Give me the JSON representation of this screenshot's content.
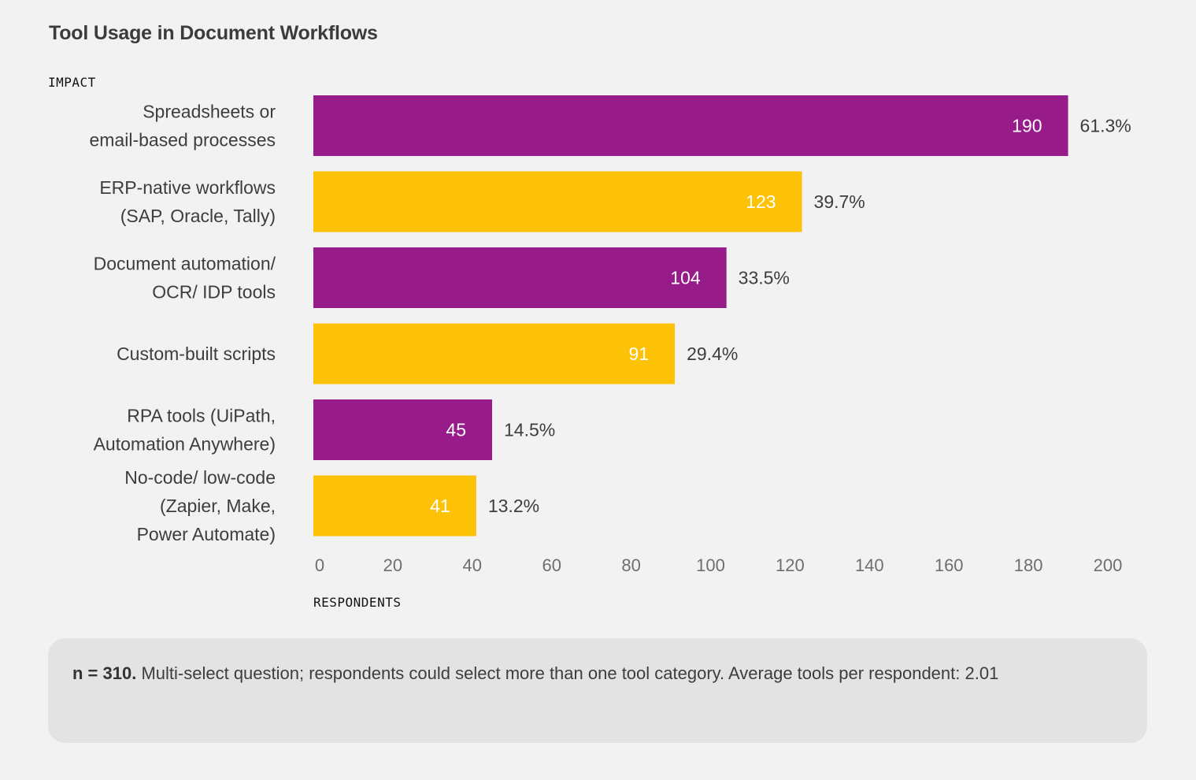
{
  "chart_data": {
    "type": "bar",
    "orientation": "horizontal",
    "title": "Tool Usage in Document Workflows",
    "ylabel": "IMPACT",
    "xlabel": "RESPONDENTS",
    "categories": [
      [
        "Spreadsheets or",
        "email-based processes"
      ],
      [
        "ERP-native workflows",
        "(SAP, Oracle, Tally)"
      ],
      [
        "Document automation/",
        "OCR/ IDP tools"
      ],
      [
        "Custom-built scripts"
      ],
      [
        "RPA tools (UiPath,",
        "Automation Anywhere)"
      ],
      [
        "No-code/ low-code",
        "(Zapier, Make,",
        "Power Automate)"
      ]
    ],
    "values": [
      190,
      123,
      104,
      91,
      45,
      41
    ],
    "percent_labels": [
      "61.3%",
      "39.7%",
      "33.5%",
      "29.4%",
      "14.5%",
      "13.2%"
    ],
    "bar_colors": [
      "#981b8a",
      "#fdc105",
      "#981b8a",
      "#fdc105",
      "#981b8a",
      "#fdc105"
    ],
    "xlim": [
      0,
      200
    ],
    "xticks": [
      0,
      20,
      40,
      60,
      80,
      100,
      120,
      140,
      160,
      180,
      200
    ],
    "grid": false,
    "legend": "none"
  },
  "note": {
    "bold": "n = 310.",
    "text": " Multi-select question; respondents could select more than one tool category. Average tools per respondent: 2.01"
  },
  "colors": {
    "background": "#f2f2f2",
    "note_background": "#e3e3e3",
    "purple": "#981b8a",
    "yellow": "#fdc105",
    "text": "#3d3d3d",
    "tick_text": "#6e6e6e"
  }
}
